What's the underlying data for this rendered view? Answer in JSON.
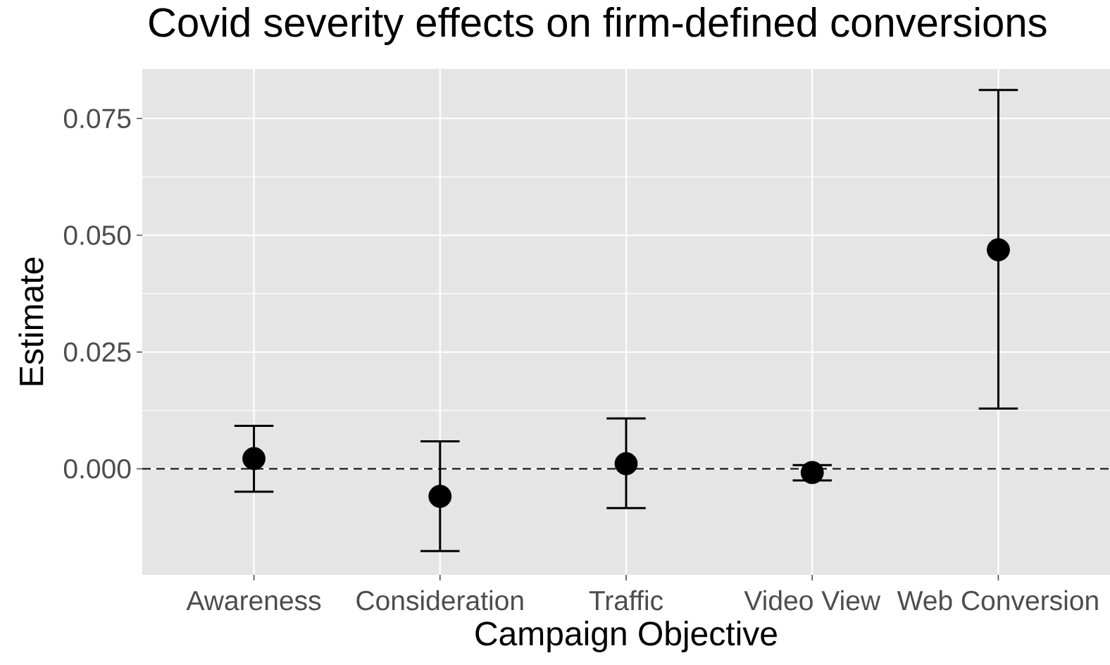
{
  "chart_data": {
    "type": "scatter",
    "title": "Covid severity effects on firm-defined conversions",
    "xlabel": "Campaign Objective",
    "ylabel": "Estimate",
    "categories": [
      "Awareness",
      "Consideration",
      "Traffic",
      "Video View",
      "Web Conversion"
    ],
    "series": [
      {
        "color": "#000000",
        "values": [
          0.0022,
          -0.0059,
          0.0011,
          -0.0008,
          0.0469
        ],
        "errors": [
          [
            -0.0049,
            0.0092
          ],
          [
            -0.0176,
            0.0059
          ],
          [
            -0.0084,
            0.0108
          ],
          [
            -0.0025,
            0.0008
          ],
          [
            0.0129,
            0.0811
          ]
        ]
      }
    ],
    "ylim": [
      -0.0227,
      0.0856
    ],
    "yticks": [
      {
        "value": 0,
        "label": "0.000"
      },
      {
        "value": 0.025,
        "label": "0.025"
      },
      {
        "value": 0.05,
        "label": "0.050"
      },
      {
        "value": 0.075,
        "label": "0.075"
      }
    ],
    "ref_lines": [
      {
        "axis": "y",
        "value": 0,
        "line_style": "dashed",
        "color": "#000000"
      }
    ],
    "grid": true,
    "marker": "circle"
  }
}
